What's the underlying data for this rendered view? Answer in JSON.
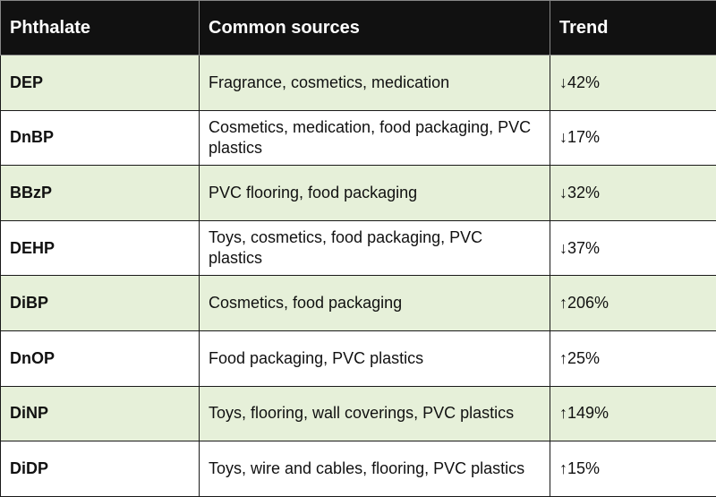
{
  "table": {
    "headers": [
      "Phthalate",
      "Common sources",
      "Trend"
    ],
    "rows": [
      {
        "phthalate": "DEP",
        "sources": "Fragrance, cosmetics, medication",
        "trend": "↓42%"
      },
      {
        "phthalate": "DnBP",
        "sources": "Cosmetics, medication, food packaging, PVC plastics",
        "trend": "↓17%"
      },
      {
        "phthalate": "BBzP",
        "sources": "PVC flooring, food packaging",
        "trend": "↓32%"
      },
      {
        "phthalate": "DEHP",
        "sources": "Toys, cosmetics, food packaging, PVC plastics",
        "trend": "↓37%"
      },
      {
        "phthalate": "DiBP",
        "sources": "Cosmetics, food packaging",
        "trend": "↑206%"
      },
      {
        "phthalate": "DnOP",
        "sources": "Food packaging, PVC plastics",
        "trend": "↑25%"
      },
      {
        "phthalate": "DiNP",
        "sources": "Toys, flooring, wall coverings, PVC plastics",
        "trend": "↑149%"
      },
      {
        "phthalate": "DiDP",
        "sources": "Toys, wire and cables, flooring, PVC plastics",
        "trend": "↑15%"
      }
    ]
  },
  "colors": {
    "header_bg": "#111111",
    "header_text": "#ffffff",
    "stripe_bg": "#e6f0d9",
    "plain_bg": "#ffffff",
    "border": "#1a1a1a"
  }
}
